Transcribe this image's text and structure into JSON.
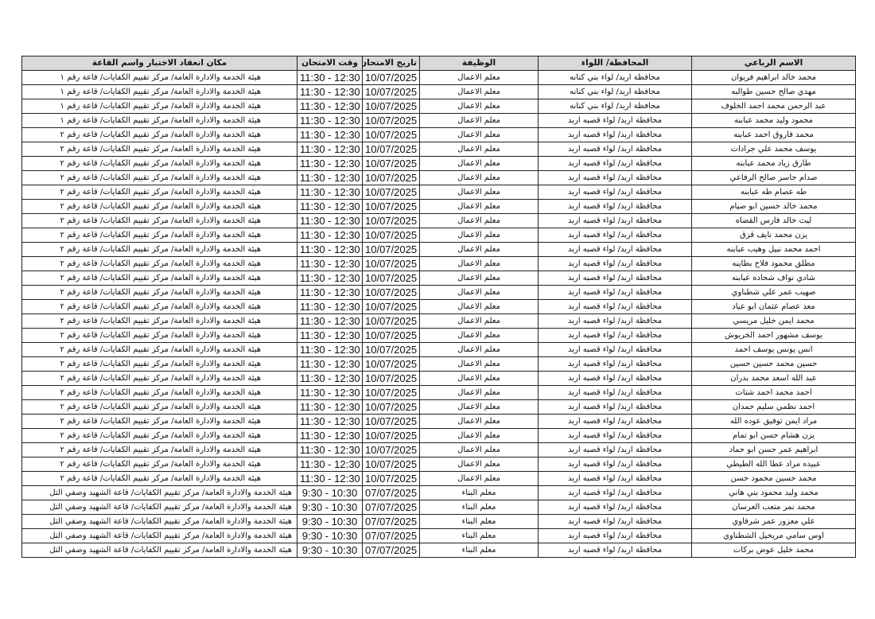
{
  "headers": {
    "name": "الاسم الرباعي",
    "governorate": "المحافظة/ اللواء",
    "job": "الوظيفة",
    "date": "تاريخ الامتحان",
    "time": "وقت الامتحان",
    "place": "مكان انعقاد الاختبار واسم القاعة"
  },
  "rows": [
    {
      "name": "محمد خالد ابراهيم فريوان",
      "governorate": "محافظة اربد/ لواء بني كنانه",
      "job": "معلم الاعمال",
      "date": "10/07/2025",
      "time": "11:30 - 12:30",
      "place": "هيئة الخدمة والادارة العامة/ مركز تقييم الكفايات/ قاعة رقم ١"
    },
    {
      "name": "مهدي صالح حسين طوالبه",
      "governorate": "محافظة اربد/ لواء بني كنانه",
      "job": "معلم الاعمال",
      "date": "10/07/2025",
      "time": "11:30 - 12:30",
      "place": "هيئة الخدمة والادارة العامة/ مركز تقييم الكفايات/ قاعة رقم ١"
    },
    {
      "name": "عبد الرحمن محمد احمد الخلوف",
      "governorate": "محافظة اربد/ لواء بني كنانه",
      "job": "معلم الاعمال",
      "date": "10/07/2025",
      "time": "11:30 - 12:30",
      "place": "هيئة الخدمة والادارة العامة/ مركز تقييم الكفايات/ قاعة رقم ١"
    },
    {
      "name": "محمود وليد محمد عبابنه",
      "governorate": "محافظة اربد/ لواء قصبه اربد",
      "job": "معلم الاعمال",
      "date": "10/07/2025",
      "time": "11:30 - 12:30",
      "place": "هيئة الخدمة والادارة العامة/ مركز تقييم الكفايات/ قاعة رقم ١"
    },
    {
      "name": "محمد فاروق احمد عبابنه",
      "governorate": "محافظة اربد/ لواء قصبه اربد",
      "job": "معلم الاعمال",
      "date": "10/07/2025",
      "time": "11:30 - 12:30",
      "place": "هيئة الخدمة والادارة العامة/ مركز تقييم الكفايات/ قاعة رقم ٢"
    },
    {
      "name": "يوسف محمد علي جرادات",
      "governorate": "محافظة اربد/ لواء قصبه اربد",
      "job": "معلم الاعمال",
      "date": "10/07/2025",
      "time": "11:30 - 12:30",
      "place": "هيئة الخدمة والادارة العامة/ مركز تقييم الكفايات/ قاعة رقم ٢"
    },
    {
      "name": "طارق زياد محمد عبابنه",
      "governorate": "محافظة اربد/ لواء قصبه اربد",
      "job": "معلم الاعمال",
      "date": "10/07/2025",
      "time": "11:30 - 12:30",
      "place": "هيئة الخدمة والادارة العامة/ مركز تقييم الكفايات/ قاعة رقم ٢"
    },
    {
      "name": "صدام جاسر صالح الرفاعي",
      "governorate": "محافظة اربد/ لواء قصبه اربد",
      "job": "معلم الاعمال",
      "date": "10/07/2025",
      "time": "11:30 - 12:30",
      "place": "هيئة الخدمة والادارة العامة/ مركز تقييم الكفايات/ قاعة رقم ٢"
    },
    {
      "name": "طه عصام طه عبابنه",
      "governorate": "محافظة اربد/ لواء قصبه اربد",
      "job": "معلم الاعمال",
      "date": "10/07/2025",
      "time": "11:30 - 12:30",
      "place": "هيئة الخدمة والادارة العامة/ مركز تقييم الكفايات/ قاعة رقم ٢"
    },
    {
      "name": "محمد خالد حسين ابو صيام",
      "governorate": "محافظة اربد/ لواء قصبه اربد",
      "job": "معلم الاعمال",
      "date": "10/07/2025",
      "time": "11:30 - 12:30",
      "place": "هيئة الخدمة والادارة العامة/ مركز تقييم الكفايات/ قاعة رقم ٢"
    },
    {
      "name": "ليث خالد فارس القضاه",
      "governorate": "محافظة اربد/ لواء قصبه اربد",
      "job": "معلم الاعمال",
      "date": "10/07/2025",
      "time": "11:30 - 12:30",
      "place": "هيئة الخدمة والادارة العامة/ مركز تقييم الكفايات/ قاعة رقم ٢"
    },
    {
      "name": "يزن محمد نايف قزق",
      "governorate": "محافظة اربد/ لواء قصبه اربد",
      "job": "معلم الاعمال",
      "date": "10/07/2025",
      "time": "11:30 - 12:30",
      "place": "هيئة الخدمة والادارة العامة/ مركز تقييم الكفايات/ قاعة رقم ٢"
    },
    {
      "name": "احمد محمد نبيل وهيب عبابنه",
      "governorate": "محافظة اربد/ لواء قصبه اربد",
      "job": "معلم الاعمال",
      "date": "10/07/2025",
      "time": "11:30 - 12:30",
      "place": "هيئة الخدمة والادارة العامة/ مركز تقييم الكفايات/ قاعة رقم ٢"
    },
    {
      "name": "مطلق محمود فلاح بطاينه",
      "governorate": "محافظة اربد/ لواء قصبه اربد",
      "job": "معلم الاعمال",
      "date": "10/07/2025",
      "time": "11:30 - 12:30",
      "place": "هيئة الخدمة والادارة العامة/ مركز تقييم الكفايات/ قاعة رقم ٢"
    },
    {
      "name": "شادي نواف شحاده عبابنه",
      "governorate": "محافظة اربد/ لواء قصبه اربد",
      "job": "معلم الاعمال",
      "date": "10/07/2025",
      "time": "11:30 - 12:30",
      "place": "هيئة الخدمة والادارة العامة/ مركز تقييم الكفايات/ قاعة رقم ٢"
    },
    {
      "name": "صهيب عمر علي شطناوي",
      "governorate": "محافظة اربد/ لواء قصبه اربد",
      "job": "معلم الاعمال",
      "date": "10/07/2025",
      "time": "11:30 - 12:30",
      "place": "هيئة الخدمة والادارة العامة/ مركز تقييم الكفايات/ قاعة رقم ٢"
    },
    {
      "name": "معد عصام عثمان ابو عياد",
      "governorate": "محافظة اربد/ لواء قصبه اربد",
      "job": "معلم الاعمال",
      "date": "10/07/2025",
      "time": "11:30 - 12:30",
      "place": "هيئة الخدمة والادارة العامة/ مركز تقييم الكفايات/ قاعة رقم ٢"
    },
    {
      "name": "محمد ايمن خليل مريسي",
      "governorate": "محافظة اربد/ لواء قصبه اربد",
      "job": "معلم الاعمال",
      "date": "10/07/2025",
      "time": "11:30 - 12:30",
      "place": "هيئة الخدمة والادارة العامة/ مركز تقييم الكفايات/ قاعة رقم ٢"
    },
    {
      "name": "يوسف مشهور احمد الخريوش",
      "governorate": "محافظة اربد/ لواء قصبه اربد",
      "job": "معلم الاعمال",
      "date": "10/07/2025",
      "time": "11:30 - 12:30",
      "place": "هيئة الخدمة والادارة العامة/ مركز تقييم الكفايات/ قاعة رقم ٢"
    },
    {
      "name": "انس يونس يوسف احمد",
      "governorate": "محافظة اربد/ لواء قصبه اربد",
      "job": "معلم الاعمال",
      "date": "10/07/2025",
      "time": "11:30 - 12:30",
      "place": "هيئة الخدمة والادارة العامة/ مركز تقييم الكفايات/ قاعة رقم ٢"
    },
    {
      "name": "حسين محمد حسين حسين",
      "governorate": "محافظة اربد/ لواء قصبه اربد",
      "job": "معلم الاعمال",
      "date": "10/07/2025",
      "time": "11:30 - 12:30",
      "place": "هيئة الخدمة والادارة العامة/ مركز تقييم الكفايات/ قاعة رقم ٢"
    },
    {
      "name": "عبد الله اسعد محمد بدران",
      "governorate": "محافظة اربد/ لواء قصبه اربد",
      "job": "معلم الاعمال",
      "date": "10/07/2025",
      "time": "11:30 - 12:30",
      "place": "هيئة الخدمة والادارة العامة/ مركز تقييم الكفايات/ قاعة رقم ٢"
    },
    {
      "name": "احمد محمد احمد شتات",
      "governorate": "محافظة اربد/ لواء قصبه اربد",
      "job": "معلم الاعمال",
      "date": "10/07/2025",
      "time": "11:30 - 12:30",
      "place": "هيئة الخدمة والادارة العامة/ مركز تقييم الكفايات/ قاعة رقم ٢"
    },
    {
      "name": "احمد نظمي سليم حمدان",
      "governorate": "محافظة اربد/ لواء قصبه اربد",
      "job": "معلم الاعمال",
      "date": "10/07/2025",
      "time": "11:30 - 12:30",
      "place": "هيئة الخدمة والادارة العامة/ مركز تقييم الكفايات/ قاعة رقم ٢"
    },
    {
      "name": "مراد ايمن توفيق عوده الله",
      "governorate": "محافظة اربد/ لواء قصبه اربد",
      "job": "معلم الاعمال",
      "date": "10/07/2025",
      "time": "11:30 - 12:30",
      "place": "هيئة الخدمة والادارة العامة/ مركز تقييم الكفايات/ قاعة رقم ٢"
    },
    {
      "name": "يزن هشام حسن ابو تمام",
      "governorate": "محافظة اربد/ لواء قصبه اربد",
      "job": "معلم الاعمال",
      "date": "10/07/2025",
      "time": "11:30 - 12:30",
      "place": "هيئة الخدمة والادارة العامة/ مركز تقييم الكفايات/ قاعة رقم ٢"
    },
    {
      "name": "ابراهيم عمر حسن ابو حماد",
      "governorate": "محافظة اربد/ لواء قصبه اربد",
      "job": "معلم الاعمال",
      "date": "10/07/2025",
      "time": "11:30 - 12:30",
      "place": "هيئة الخدمة والادارة العامة/ مركز تقييم الكفايات/ قاعة رقم ٢"
    },
    {
      "name": "عبيده مراد عطا الله الطيطي",
      "governorate": "محافظة اربد/ لواء قصبه اربد",
      "job": "معلم الاعمال",
      "date": "10/07/2025",
      "time": "11:30 - 12:30",
      "place": "هيئة الخدمة والادارة العامة/ مركز تقييم الكفايات/ قاعة رقم ٢"
    },
    {
      "name": "محمد حسين محمود حسن",
      "governorate": "محافظة اربد/ لواء قصبه اربد",
      "job": "معلم الاعمال",
      "date": "10/07/2025",
      "time": "11:30 - 12:30",
      "place": "هيئة الخدمة والادارة العامة/ مركز تقييم الكفايات/ قاعة رقم ٢"
    },
    {
      "name": "محمد وليد محمود بني هاني",
      "governorate": "محافظة اربد/ لواء قصبه اربد",
      "job": "معلم البناء",
      "date": "07/07/2025",
      "time": "9:30 - 10:30",
      "place": "هيئة الخدمة والادارة العامة/ مركز تقييم الكفايات/ قاعة الشهيد وصفي التل"
    },
    {
      "name": "محمد نمر متعب العرسان",
      "governorate": "محافظة اربد/ لواء قصبه اربد",
      "job": "معلم البناء",
      "date": "07/07/2025",
      "time": "9:30 - 10:30",
      "place": "هيئة الخدمة والادارة العامة/ مركز تقييم الكفايات/ قاعة الشهيد وصفي التل"
    },
    {
      "name": "علي معزوز عمر شرفاوي",
      "governorate": "محافظة اربد/ لواء قصبه اربد",
      "job": "معلم البناء",
      "date": "07/07/2025",
      "time": "9:30 - 10:30",
      "place": "هيئة الخدمة والادارة العامة/ مركز تقييم الكفايات/ قاعة الشهيد وصفي التل"
    },
    {
      "name": "اوس سامي مريحيل الشطناوي",
      "governorate": "محافظة اربد/ لواء قصبه اربد",
      "job": "معلم البناء",
      "date": "07/07/2025",
      "time": "9:30 - 10:30",
      "place": "هيئة الخدمة والادارة العامة/ مركز تقييم الكفايات/ قاعة الشهيد وصفي التل"
    },
    {
      "name": "محمد خليل عوض بركات",
      "governorate": "محافظة اربد/ لواء قصبه اربد",
      "job": "معلم البناء",
      "date": "07/07/2025",
      "time": "9:30 - 10:30",
      "place": "هيئة الخدمة والادارة العامة/ مركز تقييم الكفايات/ قاعة الشهيد وصفي التل"
    }
  ]
}
